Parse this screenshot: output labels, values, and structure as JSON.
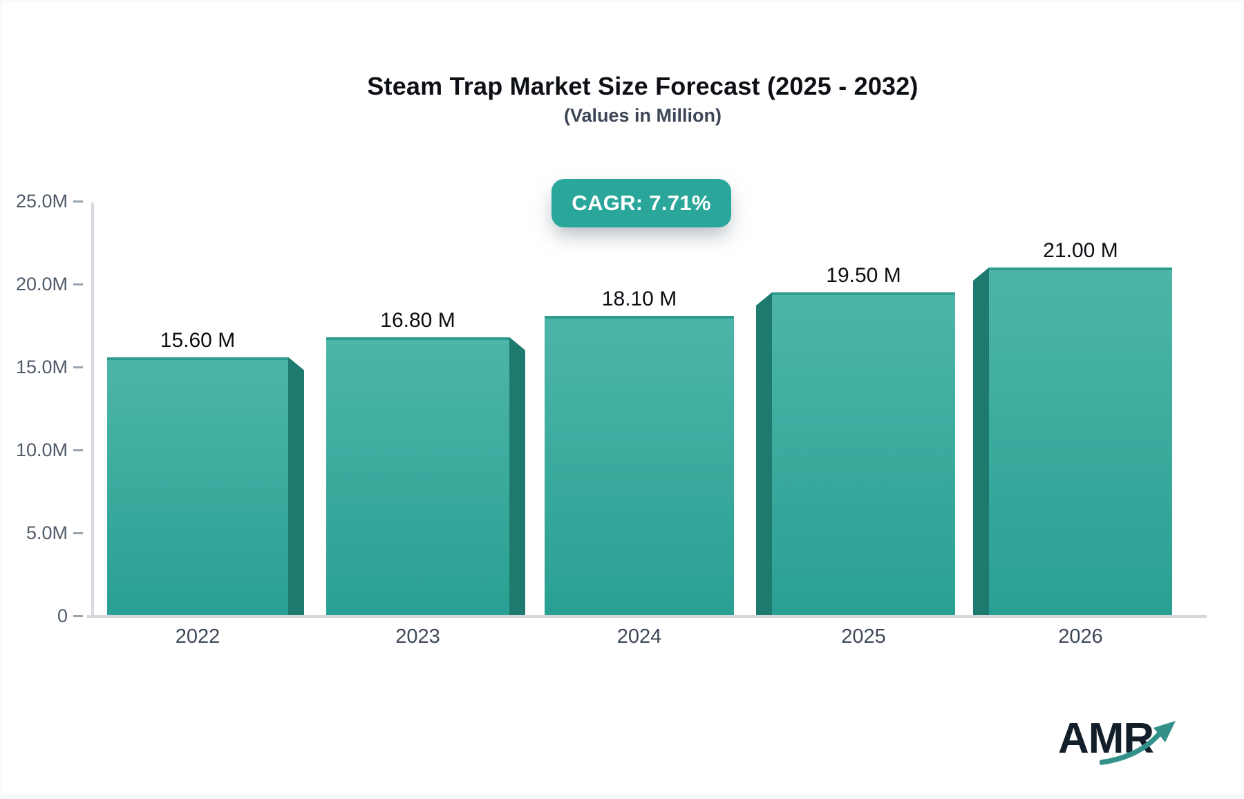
{
  "page": {
    "background": "#f8f9fb",
    "card_background": "#ffffff"
  },
  "header": {
    "title": "Steam Trap Market Size Forecast (2025 - 2032)",
    "subtitle": "(Values in Million)"
  },
  "badge": {
    "label": "CAGR: 7.71%"
  },
  "chart_data": {
    "type": "bar",
    "title": "Steam Trap Market Size Forecast (2025 - 2032)",
    "subtitle": "(Values in Million)",
    "annotation": "CAGR: 7.71%",
    "categories": [
      "2022",
      "2023",
      "2024",
      "2025",
      "2026"
    ],
    "values": [
      15.6,
      16.8,
      18.1,
      19.5,
      21.0
    ],
    "value_labels": [
      "15.60 M",
      "16.80 M",
      "18.10 M",
      "19.50 M",
      "21.00 M"
    ],
    "unit": "Million",
    "ylim": [
      0,
      25
    ],
    "y_ticks": [
      {
        "label": "25.0M",
        "value": 25
      },
      {
        "label": "20.0M",
        "value": 20
      },
      {
        "label": "15.0M",
        "value": 15
      },
      {
        "label": "10.0M",
        "value": 10
      },
      {
        "label": "5.0M",
        "value": 5
      },
      {
        "label": "0",
        "value": 0
      }
    ],
    "grid": false,
    "legend": false,
    "style": "3d-extruded-bars, perspective toward center",
    "colors": {
      "bar_face_top": "#4db5a8",
      "bar_face_bottom": "#29a093",
      "bar_top_edge": "#2f9c8f",
      "bar_side": "#1e7a6e",
      "badge_bg": "#2aa79a",
      "axis_line": "#d5d8dd",
      "tick": "#9aa3ad",
      "tick_label": "#4f5a68",
      "category_label": "#3e4857",
      "value_label": "#0b0e12",
      "title": "#0c0f14",
      "subtitle": "#3c4656"
    }
  },
  "logo": {
    "text": "AMR",
    "text_color": "#131e2b",
    "arrow_color": "#33918a"
  }
}
